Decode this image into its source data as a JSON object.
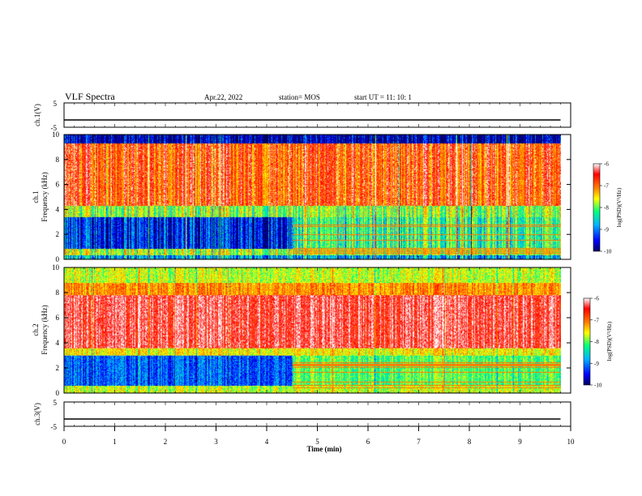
{
  "header": {
    "title": "VLF Spectra",
    "date": "Apr.22, 2022",
    "station": "station= MOS",
    "start_ut": "start  UT =   11: 10: 1"
  },
  "colors": {
    "spectrogram_scale": [
      "#000060",
      "#0000ff",
      "#00b4ff",
      "#00ff80",
      "#ffff00",
      "#ff8000",
      "#ff0000",
      "#ffffff"
    ]
  },
  "chart_data": [
    {
      "type": "line",
      "name": "ch1-voltage",
      "ylabel": "ch.1(V)",
      "yticks": [
        "5",
        "-5"
      ],
      "ylim": [
        -5,
        5
      ],
      "x": [
        0,
        9.8
      ],
      "y": [
        -2,
        -2
      ]
    },
    {
      "type": "heatmap",
      "name": "ch1-spectrogram",
      "ylabel_line1": "ch.1",
      "ylabel_line2": "Frequency (kHz)",
      "yticks": [
        "0",
        "2",
        "4",
        "6",
        "8",
        "10"
      ],
      "ylim": [
        0,
        10
      ],
      "xlim": [
        0,
        10
      ],
      "colorbar": {
        "label": "log(PSD)(V²/Hz)",
        "ticks": [
          "-6",
          "-7",
          "-8",
          "-9",
          "-10"
        ],
        "range": [
          -10,
          -6
        ]
      }
    },
    {
      "type": "heatmap",
      "name": "ch2-spectrogram",
      "ylabel_line1": "ch.2",
      "ylabel_line2": "Frequency (kHz)",
      "yticks": [
        "0",
        "2",
        "4",
        "6",
        "8",
        "10"
      ],
      "ylim": [
        0,
        10
      ],
      "xlim": [
        0,
        10
      ],
      "colorbar": {
        "label": "log(PSD)(V²/Hz)",
        "ticks": [
          "-6",
          "-7",
          "-8",
          "-9",
          "-10"
        ],
        "range": [
          -10,
          -6
        ]
      }
    },
    {
      "type": "line",
      "name": "ch3-voltage",
      "ylabel": "ch.3(V)",
      "yticks": [
        "5",
        "-5"
      ],
      "ylim": [
        -5,
        5
      ],
      "x": [
        0,
        9.8
      ],
      "y": [
        -2,
        -2
      ]
    }
  ],
  "xaxis": {
    "label": "Time (min)",
    "ticks": [
      "0",
      "1",
      "2",
      "3",
      "4",
      "5",
      "6",
      "7",
      "8",
      "9",
      "10"
    ],
    "xlim": [
      0,
      10
    ]
  }
}
